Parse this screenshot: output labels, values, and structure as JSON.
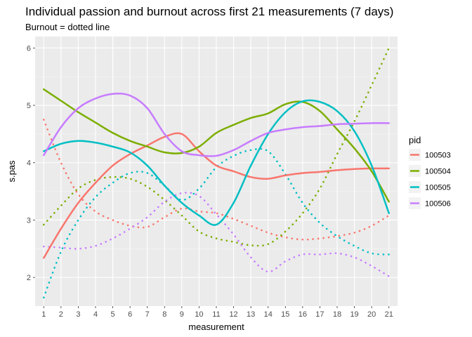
{
  "chart_data": {
    "type": "line",
    "title": "Individual passion and burnout across first 21 measurements (7 days)",
    "subtitle": "Burnout = dotted line",
    "xlabel": "measurement",
    "ylabel": "s.pas",
    "x": [
      1,
      2,
      3,
      4,
      5,
      6,
      7,
      8,
      9,
      10,
      11,
      12,
      13,
      14,
      15,
      16,
      17,
      18,
      19,
      20,
      21
    ],
    "xlim": [
      0.5,
      21.5
    ],
    "ylim": [
      1.5,
      6.2
    ],
    "yticks": [
      2,
      3,
      4,
      5,
      6
    ],
    "grid": true,
    "legend_title": "pid",
    "legend_position": "right",
    "series": [
      {
        "name": "100503",
        "color": "#F8766D",
        "passion": [
          2.34,
          2.85,
          3.3,
          3.65,
          3.95,
          4.15,
          4.3,
          4.45,
          4.5,
          4.2,
          3.95,
          3.85,
          3.75,
          3.72,
          3.78,
          3.82,
          3.84,
          3.87,
          3.89,
          3.9,
          3.9
        ],
        "burnout": [
          4.75,
          4.0,
          3.45,
          3.15,
          3.0,
          2.9,
          2.88,
          3.05,
          3.2,
          3.15,
          3.12,
          3.02,
          2.9,
          2.78,
          2.7,
          2.66,
          2.68,
          2.72,
          2.78,
          2.9,
          3.08
        ]
      },
      {
        "name": "100504",
        "color": "#7CAE00",
        "passion": [
          5.28,
          5.08,
          4.88,
          4.7,
          4.52,
          4.38,
          4.28,
          4.18,
          4.17,
          4.28,
          4.52,
          4.66,
          4.78,
          4.86,
          5.02,
          5.06,
          4.9,
          4.58,
          4.25,
          3.85,
          3.32
        ],
        "burnout": [
          2.92,
          3.25,
          3.55,
          3.7,
          3.75,
          3.72,
          3.58,
          3.35,
          3.08,
          2.8,
          2.68,
          2.62,
          2.56,
          2.58,
          2.8,
          3.12,
          3.55,
          4.15,
          4.72,
          5.35,
          6.0
        ]
      },
      {
        "name": "100505",
        "color": "#00BFC4",
        "passion": [
          4.2,
          4.33,
          4.38,
          4.35,
          4.28,
          4.18,
          3.95,
          3.6,
          3.3,
          3.08,
          2.92,
          3.3,
          3.95,
          4.5,
          4.88,
          5.07,
          5.06,
          4.9,
          4.55,
          3.95,
          3.12
        ],
        "burnout": [
          1.65,
          2.45,
          3.0,
          3.4,
          3.65,
          3.82,
          3.82,
          3.6,
          3.35,
          3.55,
          3.92,
          4.12,
          4.22,
          4.2,
          3.8,
          3.3,
          2.95,
          2.72,
          2.55,
          2.42,
          2.4
        ]
      },
      {
        "name": "100506",
        "color": "#C77CFF",
        "passion": [
          4.13,
          4.62,
          4.95,
          5.12,
          5.2,
          5.17,
          4.95,
          4.5,
          4.2,
          4.13,
          4.12,
          4.22,
          4.38,
          4.52,
          4.58,
          4.62,
          4.64,
          4.67,
          4.68,
          4.69,
          4.69
        ],
        "burnout": [
          2.54,
          2.52,
          2.5,
          2.55,
          2.68,
          2.85,
          3.05,
          3.32,
          3.47,
          3.42,
          3.1,
          2.75,
          2.35,
          2.1,
          2.28,
          2.4,
          2.4,
          2.42,
          2.35,
          2.2,
          2.02
        ]
      }
    ]
  }
}
